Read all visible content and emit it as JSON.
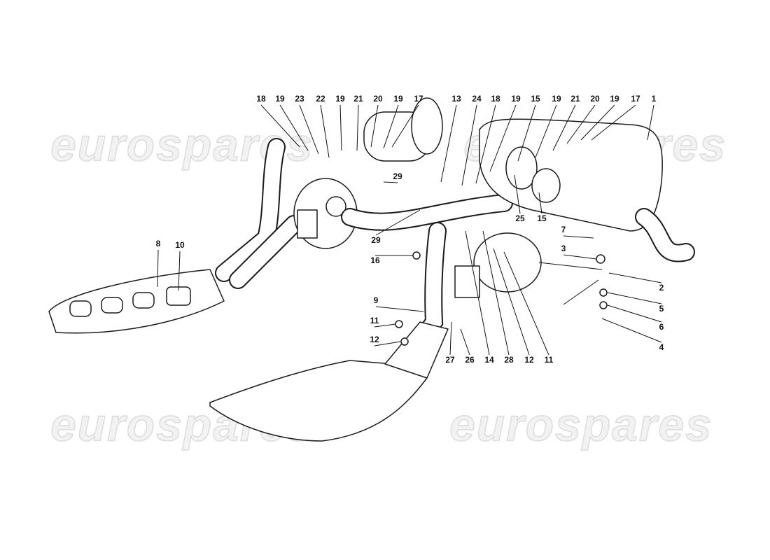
{
  "callouts": [
    "18",
    "19",
    "23",
    "22",
    "19",
    "21",
    "20",
    "19",
    "17",
    "13",
    "24",
    "18",
    "19",
    "15",
    "19",
    "21",
    "20",
    "19",
    "17",
    "1",
    "29",
    "25",
    "15",
    "7",
    "3",
    "29",
    "16",
    "8",
    "10",
    "2",
    "5",
    "6",
    "4",
    "9",
    "11",
    "12",
    "27",
    "26",
    "14",
    "28",
    "12",
    "11"
  ],
  "watermarks": [
    "eurospares",
    "eurospares",
    "eurospares",
    "eurospares"
  ]
}
